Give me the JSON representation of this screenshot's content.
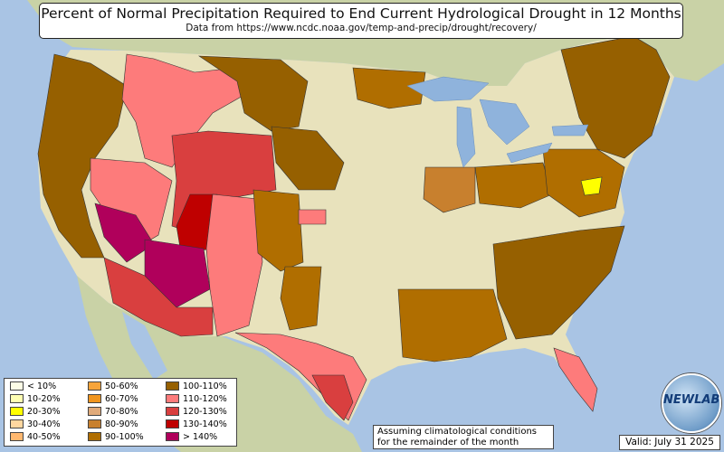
{
  "header": {
    "title": "Percent of Normal Precipitation Required to End Current Hydrological Drought in 12 Months",
    "subtitle": "Data from https://www.ncdc.noaa.gov/temp-and-precip/drought/recovery/"
  },
  "legend": {
    "items": [
      {
        "label": "< 10%",
        "color": "#fdfde6"
      },
      {
        "label": "10-20%",
        "color": "#ffffb3"
      },
      {
        "label": "20-30%",
        "color": "#ffff00"
      },
      {
        "label": "30-40%",
        "color": "#ffd7a0"
      },
      {
        "label": "40-50%",
        "color": "#ffb870"
      },
      {
        "label": "50-60%",
        "color": "#f7a43a"
      },
      {
        "label": "60-70%",
        "color": "#f0951e"
      },
      {
        "label": "70-80%",
        "color": "#e0aa7a"
      },
      {
        "label": "80-90%",
        "color": "#c8802e"
      },
      {
        "label": "90-100%",
        "color": "#b06e00"
      },
      {
        "label": "100-110%",
        "color": "#966000"
      },
      {
        "label": "110-120%",
        "color": "#fd7b7b"
      },
      {
        "label": "120-130%",
        "color": "#d93f3f"
      },
      {
        "label": "130-140%",
        "color": "#bf0000"
      },
      {
        "label": "> 140%",
        "color": "#b0005b"
      }
    ]
  },
  "note": {
    "line1": "Assuming climatological conditions",
    "line2": "for the remainder of the month"
  },
  "valid": "Valid: July 31 2025",
  "logo": {
    "text": "NEWLAB"
  },
  "colors": {
    "ocean": "#a9c4e4",
    "land_us": "#e8e2bc",
    "land_foreign": "#c9d2a6",
    "lakes": "#8fb3dc"
  }
}
